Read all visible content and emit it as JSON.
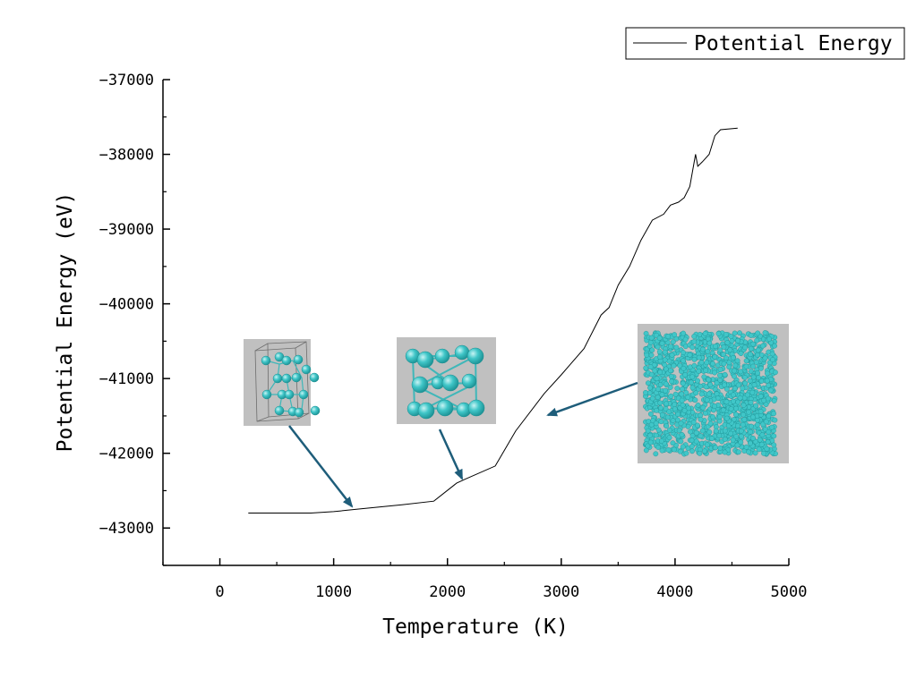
{
  "chart_data": {
    "type": "line",
    "title": "",
    "xlabel": "Temperature (K)",
    "ylabel": "Potential Energy (eV)",
    "xlim": [
      -500,
      5000
    ],
    "ylim": [
      -43500,
      -37000
    ],
    "x_ticks": [
      0,
      1000,
      2000,
      3000,
      4000,
      5000
    ],
    "y_ticks": [
      -43000,
      -42000,
      -41000,
      -40000,
      -39000,
      -38000,
      -37000
    ],
    "grid": false,
    "legend_position": "top-right",
    "series": [
      {
        "name": "Potential Energy",
        "color": "#000000",
        "x": [
          250,
          400,
          550,
          800,
          1000,
          1200,
          1400,
          1600,
          1880,
          2080,
          2150,
          2420,
          2600,
          2850,
          3000,
          3200,
          3350,
          3420,
          3500,
          3600,
          3700,
          3800,
          3900,
          3960,
          4030,
          4080,
          4130,
          4180,
          4200,
          4240,
          4300,
          4350,
          4400,
          4550
        ],
        "values": [
          -42800,
          -42800,
          -42800,
          -42800,
          -42780,
          -42750,
          -42720,
          -42690,
          -42640,
          -42400,
          -42350,
          -42170,
          -41700,
          -41200,
          -40950,
          -40600,
          -40150,
          -40050,
          -39750,
          -39500,
          -39150,
          -38880,
          -38800,
          -38680,
          -38640,
          -38580,
          -38430,
          -38000,
          -38160,
          -38100,
          -38000,
          -37750,
          -37670,
          -37650
        ]
      }
    ],
    "annotations": [
      {
        "name": "low-temperature-crystal-structure",
        "arrow_to": {
          "x": 1180,
          "y": -42780
        }
      },
      {
        "name": "intermediate-crystal-structure",
        "arrow_to": {
          "x": 2120,
          "y": -42380
        }
      },
      {
        "name": "high-temperature-disordered-structure",
        "arrow_to": {
          "x": 2850,
          "y": -41520
        }
      }
    ]
  },
  "colors": {
    "atom_fill": "#40c6c8",
    "atom_stroke": "#1b8f92",
    "bond": "#3fb7b9",
    "inset_background": "#c0c0c0",
    "arrow": "#1e5d7a"
  },
  "icons": {
    "inset_1": "crystal-structure-icon",
    "inset_2": "crystal-structure-icon",
    "inset_3": "atom-cloud-icon"
  }
}
